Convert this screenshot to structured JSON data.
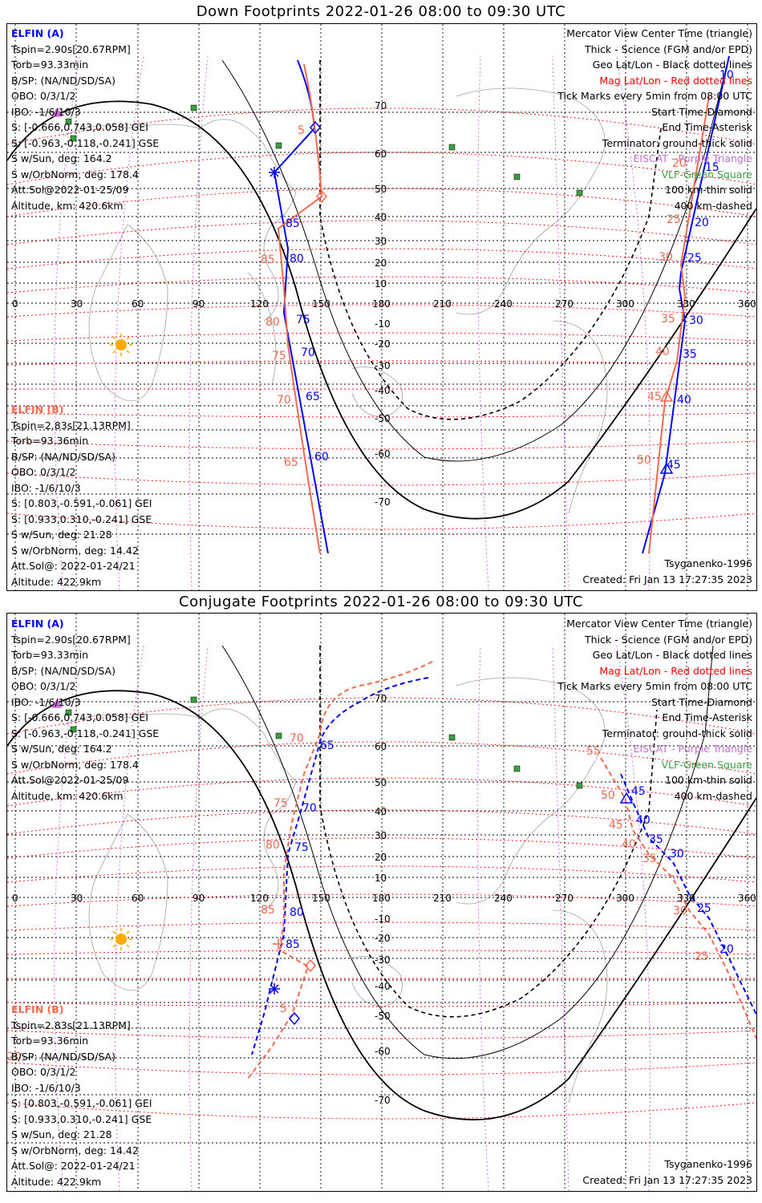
{
  "down": {
    "title": "Down Footprints 2022-01-26 08:00 to 09:30 UTC",
    "elfin_a": {
      "name": "ELFIN (A)",
      "lines": [
        "Tspin=2.90s[20.67RPM]",
        "Torb=93.33min",
        "B/SP: (NA/ND/SD/SA)",
        "OBO: 0/3/1/2",
        "IBO: -1/6/10/3",
        "S: [-0.666,0.743,0.058] GEI",
        "S: [-0.963,-0.118,-0.241] GSE",
        "S w/Sun, deg: 164.2",
        "S w/OrbNorm, deg: 178.4",
        "Att.Sol@2022-01-25/09",
        "Altitude, km: 420.6km"
      ]
    },
    "elfin_b": {
      "name": "ELFIN (B)",
      "lines": [
        "Tspin=2.83s[21.13RPM]",
        "Torb=93.36min",
        "B/SP: (NA/ND/SD/SA)",
        "OBO: 0/3/1/2",
        "IBO: -1/6/10/3",
        "S: [0.803,-0.591,-0.061] GEI",
        "S: [0.933,0.310,-0.241] GSE",
        "S w/Sun, deg: 21.28",
        "S w/OrbNorm, deg: 14.42",
        "Att.Sol@: 2022-01-24/21",
        "Altitude: 422.9km"
      ]
    },
    "footer_left": "",
    "model": "Tsyganenko-1996",
    "created": "Created: Fri Jan 13 17:27:35 2023"
  },
  "conjugate": {
    "title": "Conjugate Footprints 2022-01-26 08:00 to 09:30 UTC",
    "model": "Tsyganenko-1996",
    "created": "Created: Fri Jan 13 17:27:35 2023"
  },
  "legend": {
    "black": [
      "Mercator View Center Time (triangle)",
      "Thick - Science (FGM and/or EPD)",
      "Geo Lat/Lon - Black dotted lines"
    ],
    "red": "Mag Lat/Lon - Red dotted lines",
    "black2": [
      "Tick Marks every 5min from 08:00 UTC",
      "Start Time-Diamond",
      "End Time-Asterisk",
      "Terminator: ground-thick solid"
    ],
    "violet": "EISCAT - Purple Triangle",
    "green": "VLF-Green Square",
    "black3": [
      "100 km-thin solid",
      "400 km-dashed"
    ]
  },
  "axis": {
    "lon_ticks": [
      "0",
      "30",
      "60",
      "90",
      "120",
      "150",
      "180",
      "210",
      "240",
      "270",
      "300",
      "330",
      "360"
    ],
    "lat_ticks": [
      "70",
      "60",
      "50",
      "40",
      "30",
      "20",
      "10",
      "-10",
      "-20",
      "-30",
      "-40",
      "-50",
      "-60",
      "-70"
    ]
  },
  "colors": {
    "elfin_a": "#0000ff",
    "elfin_b": "#ee6a50",
    "mag_grid": "#ff0000",
    "geo_grid": "#000000",
    "eiscat": "#cc66dd",
    "vlf": "#3aa040",
    "sun": "#ffaa00"
  },
  "down_labels_a": [
    "5",
    "85",
    "80",
    "75",
    "70",
    "65",
    "60",
    "10",
    "15",
    "20",
    "25",
    "30",
    "35",
    "40",
    "45"
  ],
  "down_labels_b": [
    "5",
    "85",
    "80",
    "75",
    "70",
    "65",
    "20",
    "25",
    "30",
    "35",
    "40",
    "45",
    "50"
  ],
  "conj_labels_a": [
    "65",
    "70",
    "75",
    "80",
    "85",
    "45",
    "40",
    "35",
    "30",
    "25",
    "20"
  ],
  "conj_labels_b": [
    "70",
    "75",
    "80",
    "85",
    "5",
    "55",
    "50",
    "45",
    "40",
    "35",
    "30",
    "25",
    "20"
  ]
}
